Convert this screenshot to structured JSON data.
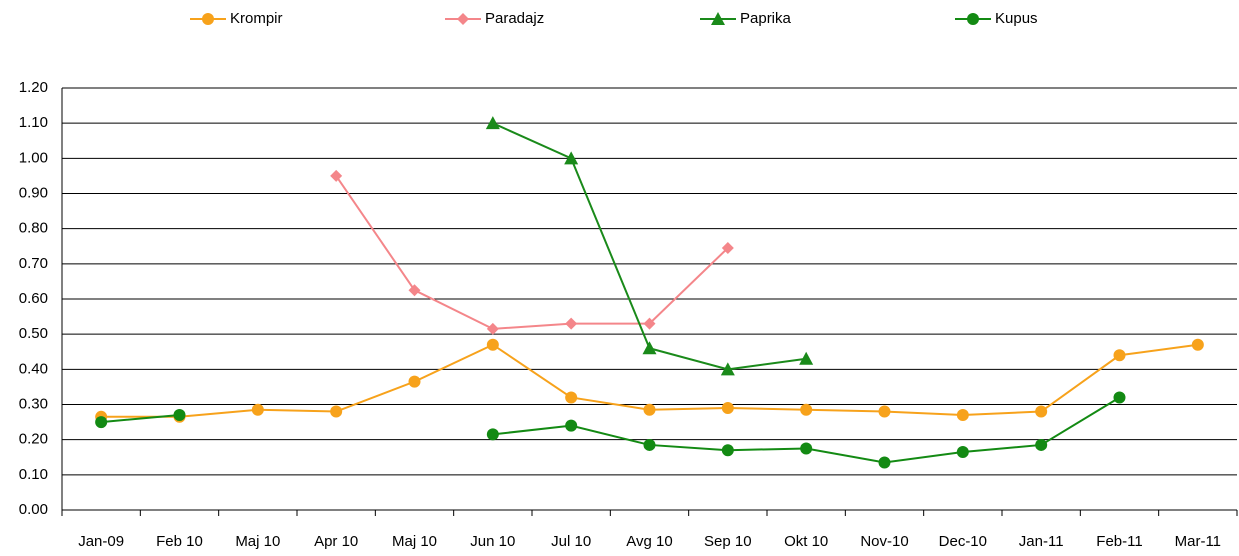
{
  "chart_data": {
    "type": "line",
    "categories": [
      "Jan-09",
      "Feb 10",
      "Maj 10",
      "Apr 10",
      "Maj  10",
      "Jun  10",
      "Jul 10",
      "Avg  10",
      "Sep  10",
      "Okt 10",
      "Nov-10",
      "Dec-10",
      "Jan-11",
      "Feb-11",
      "Mar-11"
    ],
    "series": [
      {
        "name": "Krompir",
        "color": "#f7a21b",
        "marker": "circle",
        "values": [
          0.265,
          0.265,
          0.285,
          0.28,
          0.365,
          0.47,
          0.32,
          0.285,
          0.29,
          0.285,
          0.28,
          0.27,
          0.28,
          0.44,
          0.47
        ]
      },
      {
        "name": "Paradajz",
        "color": "#f4868a",
        "marker": "diamond",
        "values": [
          null,
          null,
          null,
          0.95,
          0.625,
          0.515,
          0.53,
          0.53,
          0.745,
          null,
          null,
          null,
          null,
          null,
          null
        ]
      },
      {
        "name": "Paprika",
        "color": "#1a8a1a",
        "marker": "triangle",
        "values": [
          null,
          null,
          null,
          null,
          null,
          1.1,
          1.0,
          0.46,
          0.4,
          0.43,
          null,
          null,
          null,
          null,
          null
        ]
      },
      {
        "name": "Kupus",
        "color": "#138a13",
        "marker": "circle",
        "values": [
          0.25,
          0.27,
          null,
          null,
          null,
          0.215,
          0.24,
          0.185,
          0.17,
          0.175,
          0.135,
          0.165,
          0.185,
          0.32,
          null
        ]
      }
    ],
    "ylim": [
      0,
      1.2
    ],
    "yticks": [
      {
        "value": 0,
        "label": "0.00"
      },
      {
        "value": 0.1,
        "label": "0.10"
      },
      {
        "value": 0.2,
        "label": "0.20"
      },
      {
        "value": 0.3,
        "label": "0.30"
      },
      {
        "value": 0.4,
        "label": "0.40"
      },
      {
        "value": 0.5,
        "label": "0.50"
      },
      {
        "value": 0.6,
        "label": "0.60"
      },
      {
        "value": 0.7,
        "label": "0.70"
      },
      {
        "value": 0.8,
        "label": "0.80"
      },
      {
        "value": 0.9,
        "label": "0.90"
      },
      {
        "value": 1.0,
        "label": "1.00"
      },
      {
        "value": 1.1,
        "label": "1.10"
      },
      {
        "value": 1.2,
        "label": "1.20"
      }
    ],
    "grid": true,
    "legend": "top"
  }
}
